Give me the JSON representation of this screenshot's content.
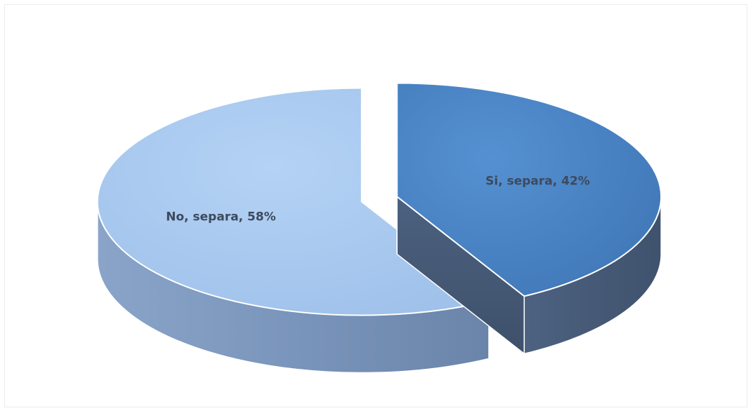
{
  "chart_data": {
    "type": "pie",
    "title": "",
    "slices": [
      {
        "label": "No, separa",
        "value": 58,
        "display": "No, separa, 58%",
        "color": "#a9c9f0"
      },
      {
        "label": "Si, separa",
        "value": 42,
        "display": "Si, separa, 42%",
        "color": "#4a83c3"
      }
    ],
    "legend": "none",
    "style": "3d-exploded"
  }
}
